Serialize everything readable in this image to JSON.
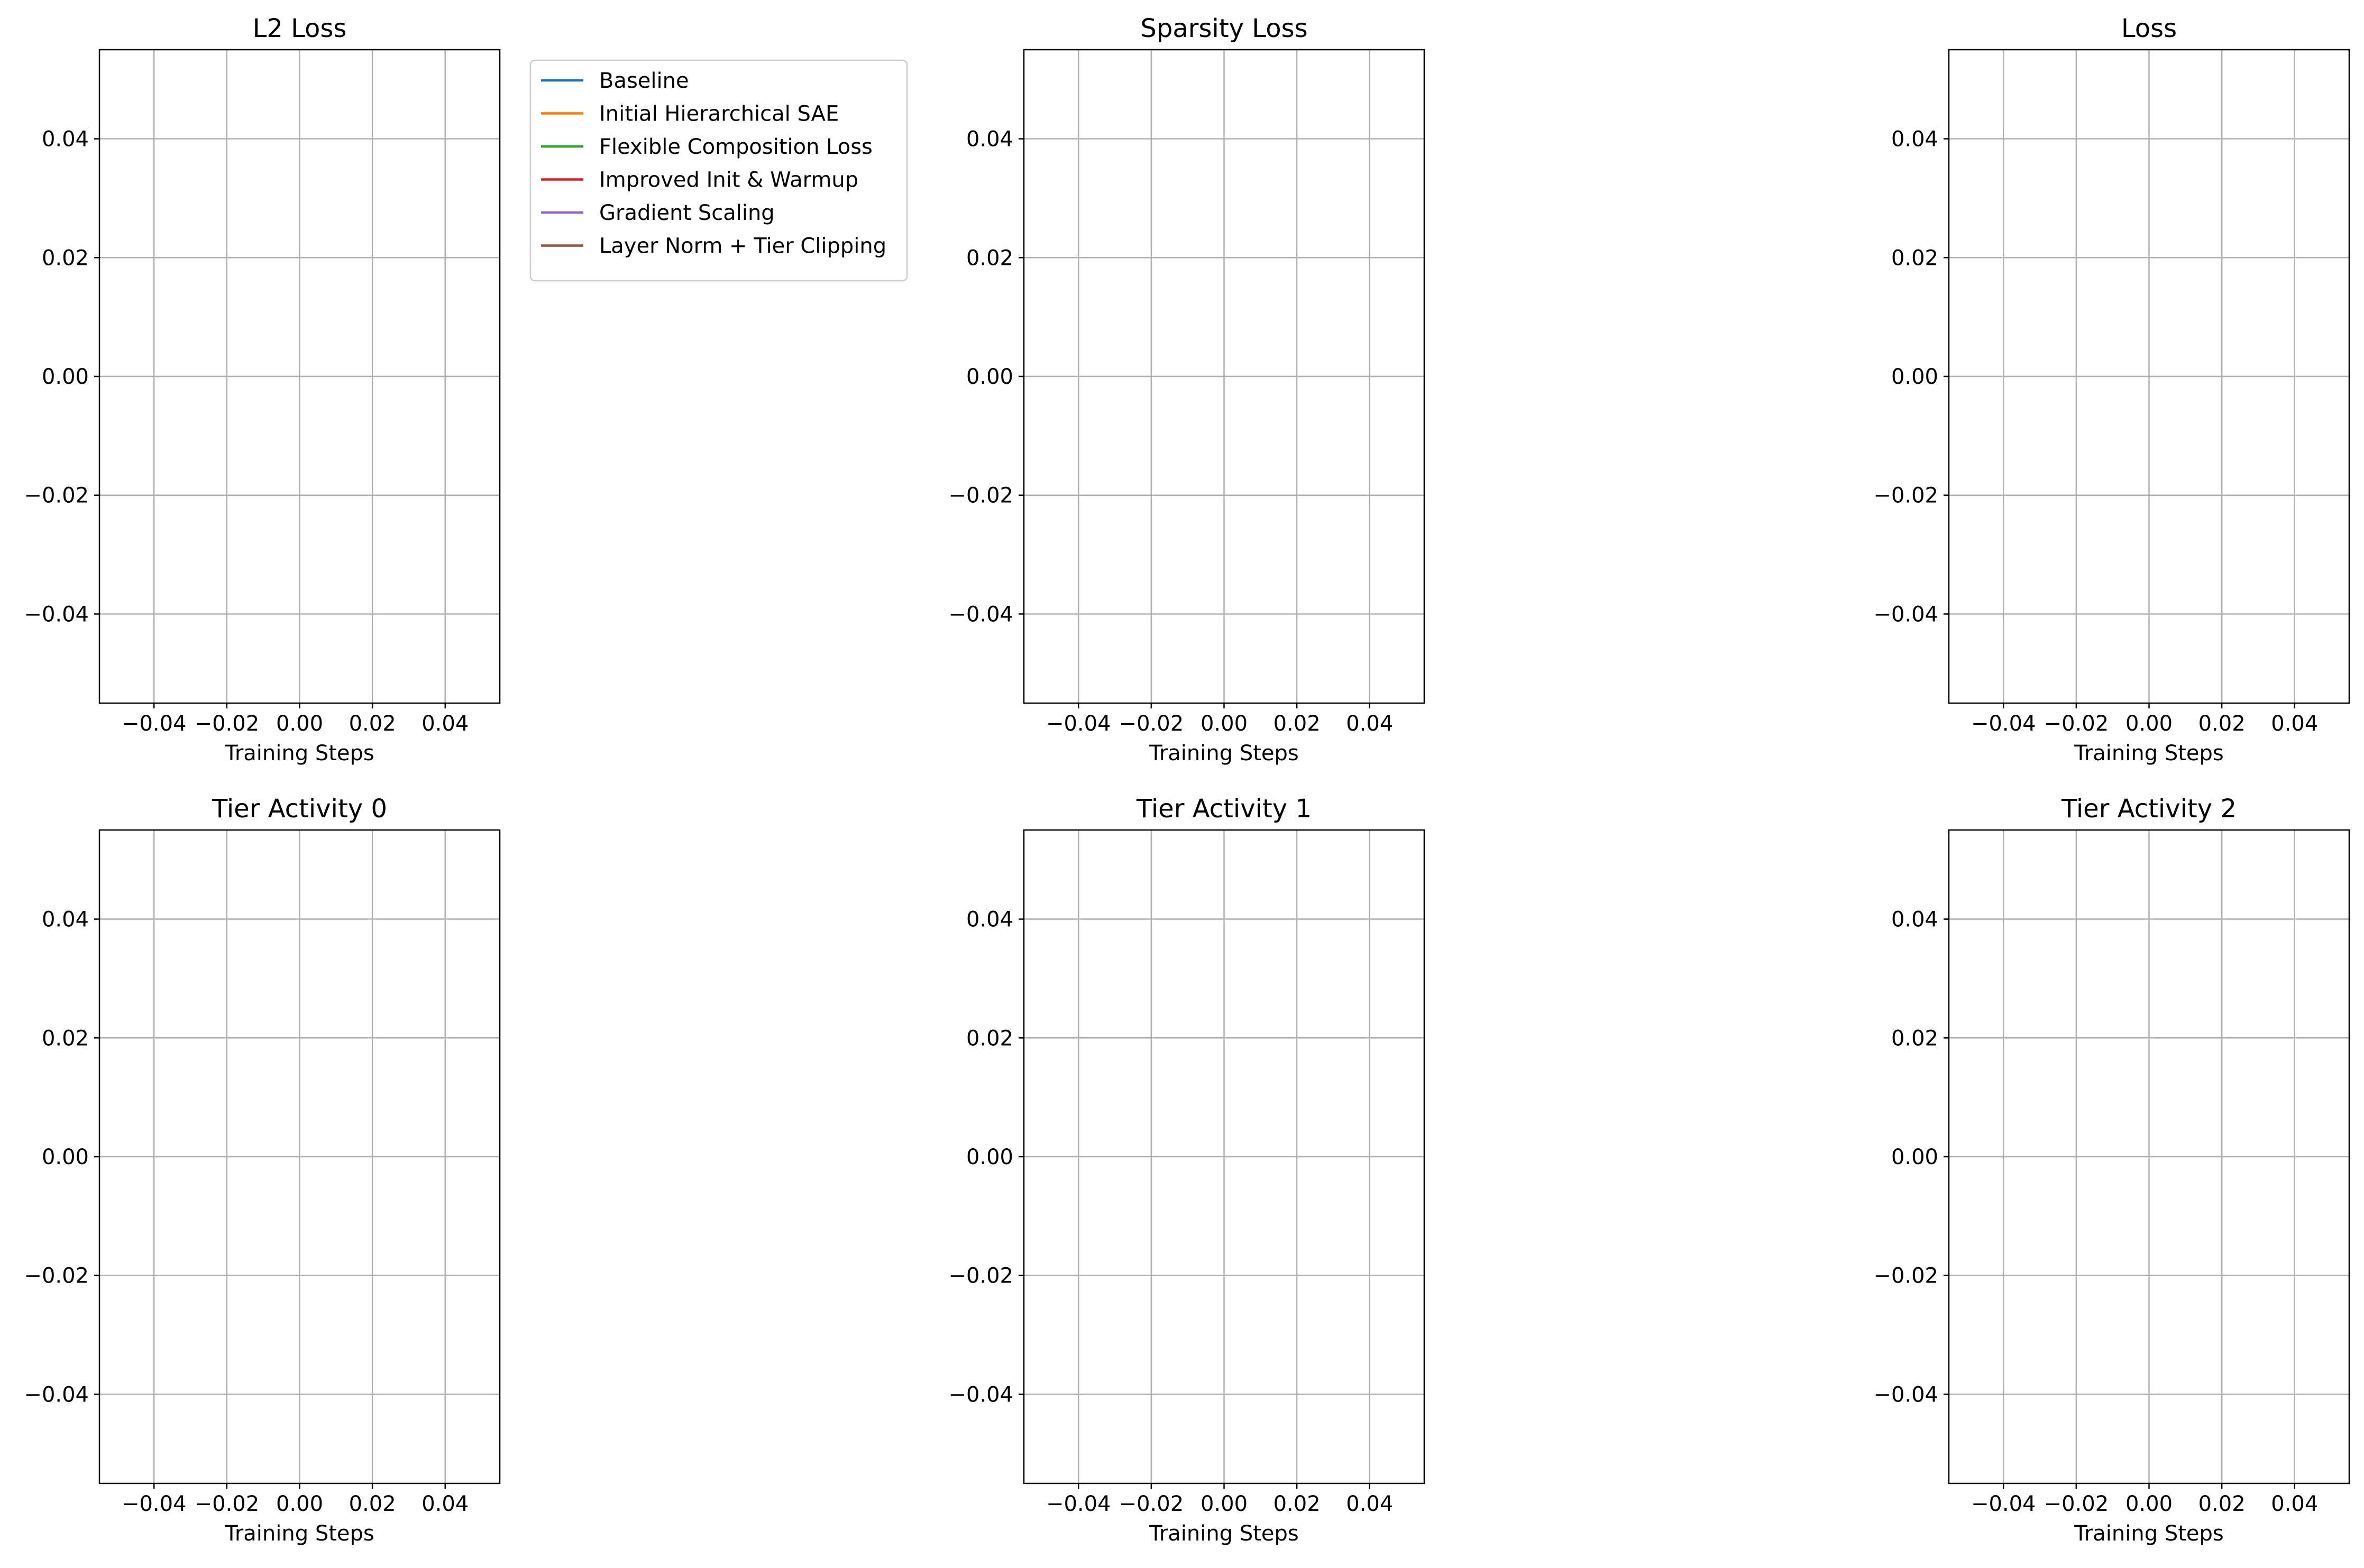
{
  "chart_data": [
    {
      "type": "line",
      "title": "L2 Loss",
      "xlabel": "Training Steps",
      "ylabel": "",
      "xlim": [
        -0.055,
        0.055
      ],
      "ylim": [
        -0.055,
        0.055
      ],
      "x_ticks": [
        "−0.04",
        "−0.02",
        "0.00",
        "0.02",
        "0.04"
      ],
      "y_ticks": [
        "−0.04",
        "−0.02",
        "0.00",
        "0.02",
        "0.04"
      ],
      "grid": true,
      "legend": "outside-right",
      "series": [
        {
          "name": "Baseline",
          "color": "#1f77b4",
          "x": [],
          "y": []
        },
        {
          "name": "Initial Hierarchical SAE",
          "color": "#ff7f0e",
          "x": [],
          "y": []
        },
        {
          "name": "Flexible Composition Loss",
          "color": "#2ca02c",
          "x": [],
          "y": []
        },
        {
          "name": "Improved Init & Warmup",
          "color": "#d62728",
          "x": [],
          "y": []
        },
        {
          "name": "Gradient Scaling",
          "color": "#9467bd",
          "x": [],
          "y": []
        },
        {
          "name": "Layer Norm + Tier Clipping",
          "color": "#8c564b",
          "x": [],
          "y": []
        }
      ]
    },
    {
      "type": "line",
      "title": "Sparsity Loss",
      "xlabel": "Training Steps",
      "ylabel": "",
      "xlim": [
        -0.055,
        0.055
      ],
      "ylim": [
        -0.055,
        0.055
      ],
      "x_ticks": [
        "−0.04",
        "−0.02",
        "0.00",
        "0.02",
        "0.04"
      ],
      "y_ticks": [
        "−0.04",
        "−0.02",
        "0.00",
        "0.02",
        "0.04"
      ],
      "grid": true,
      "series": []
    },
    {
      "type": "line",
      "title": "Loss",
      "xlabel": "Training Steps",
      "ylabel": "",
      "xlim": [
        -0.055,
        0.055
      ],
      "ylim": [
        -0.055,
        0.055
      ],
      "x_ticks": [
        "−0.04",
        "−0.02",
        "0.00",
        "0.02",
        "0.04"
      ],
      "y_ticks": [
        "−0.04",
        "−0.02",
        "0.00",
        "0.02",
        "0.04"
      ],
      "grid": true,
      "series": []
    },
    {
      "type": "line",
      "title": "Tier Activity 0",
      "xlabel": "Training Steps",
      "ylabel": "",
      "xlim": [
        -0.055,
        0.055
      ],
      "ylim": [
        -0.055,
        0.055
      ],
      "x_ticks": [
        "−0.04",
        "−0.02",
        "0.00",
        "0.02",
        "0.04"
      ],
      "y_ticks": [
        "−0.04",
        "−0.02",
        "0.00",
        "0.02",
        "0.04"
      ],
      "grid": true,
      "series": []
    },
    {
      "type": "line",
      "title": "Tier Activity 1",
      "xlabel": "Training Steps",
      "ylabel": "",
      "xlim": [
        -0.055,
        0.055
      ],
      "ylim": [
        -0.055,
        0.055
      ],
      "x_ticks": [
        "−0.04",
        "−0.02",
        "0.00",
        "0.02",
        "0.04"
      ],
      "y_ticks": [
        "−0.04",
        "−0.02",
        "0.00",
        "0.02",
        "0.04"
      ],
      "grid": true,
      "series": []
    },
    {
      "type": "line",
      "title": "Tier Activity 2",
      "xlabel": "Training Steps",
      "ylabel": "",
      "xlim": [
        -0.055,
        0.055
      ],
      "ylim": [
        -0.055,
        0.055
      ],
      "x_ticks": [
        "−0.04",
        "−0.02",
        "0.00",
        "0.02",
        "0.04"
      ],
      "y_ticks": [
        "−0.04",
        "−0.02",
        "0.00",
        "0.02",
        "0.04"
      ],
      "grid": true,
      "series": []
    }
  ]
}
